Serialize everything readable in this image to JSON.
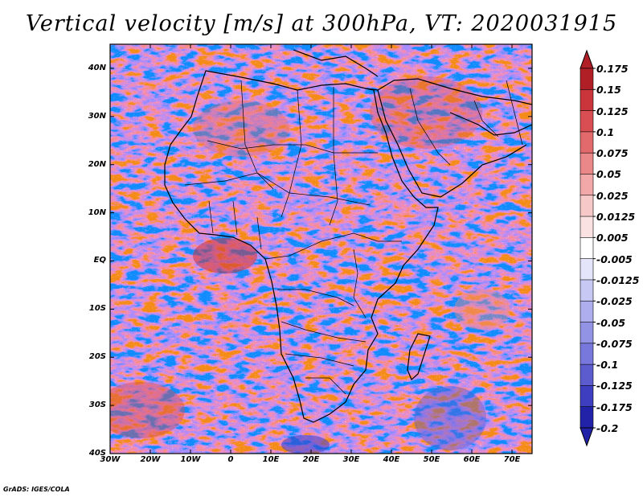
{
  "title": "Vertical velocity [m/s] at 300hPa, VT: 2020031915",
  "credit": "GrADS: IGES/COLA",
  "map": {
    "region": "Africa",
    "variable": "Vertical velocity",
    "units": "m/s",
    "level": "300hPa",
    "valid_time": "2020031915",
    "lon_range": [
      -30,
      75
    ],
    "lat_range": [
      -40,
      45
    ]
  },
  "axes": {
    "lat_ticks": [
      {
        "label": "40N",
        "value": 40
      },
      {
        "label": "30N",
        "value": 30
      },
      {
        "label": "20N",
        "value": 20
      },
      {
        "label": "10N",
        "value": 10
      },
      {
        "label": "EQ",
        "value": 0
      },
      {
        "label": "10S",
        "value": -10
      },
      {
        "label": "20S",
        "value": -20
      },
      {
        "label": "30S",
        "value": -30
      },
      {
        "label": "40S",
        "value": -40
      }
    ],
    "lon_ticks": [
      {
        "label": "30W",
        "value": -30
      },
      {
        "label": "20W",
        "value": -20
      },
      {
        "label": "10W",
        "value": -10
      },
      {
        "label": "0",
        "value": 0
      },
      {
        "label": "10E",
        "value": 10
      },
      {
        "label": "20E",
        "value": 20
      },
      {
        "label": "30E",
        "value": 30
      },
      {
        "label": "40E",
        "value": 40
      },
      {
        "label": "50E",
        "value": 50
      },
      {
        "label": "60E",
        "value": 60
      },
      {
        "label": "70E",
        "value": 70
      }
    ]
  },
  "colorbar": {
    "labels": [
      "0.175",
      "0.15",
      "0.125",
      "0.1",
      "0.075",
      "0.05",
      "0.025",
      "0.0125",
      "0.005",
      "-0.005",
      "-0.0125",
      "-0.025",
      "-0.05",
      "-0.075",
      "-0.1",
      "-0.125",
      "-0.175",
      "-0.2"
    ],
    "colors": [
      "#b01e26",
      "#c9353b",
      "#d84e52",
      "#e26a6c",
      "#ea8788",
      "#f2a8a8",
      "#f7c8c8",
      "#fbe2e2",
      "#ffffff",
      "#e4e4fb",
      "#c8c8f4",
      "#aeaeee",
      "#9393e6",
      "#7878dc",
      "#5c5ccf",
      "#3e3ec0",
      "#2222a8"
    ]
  }
}
